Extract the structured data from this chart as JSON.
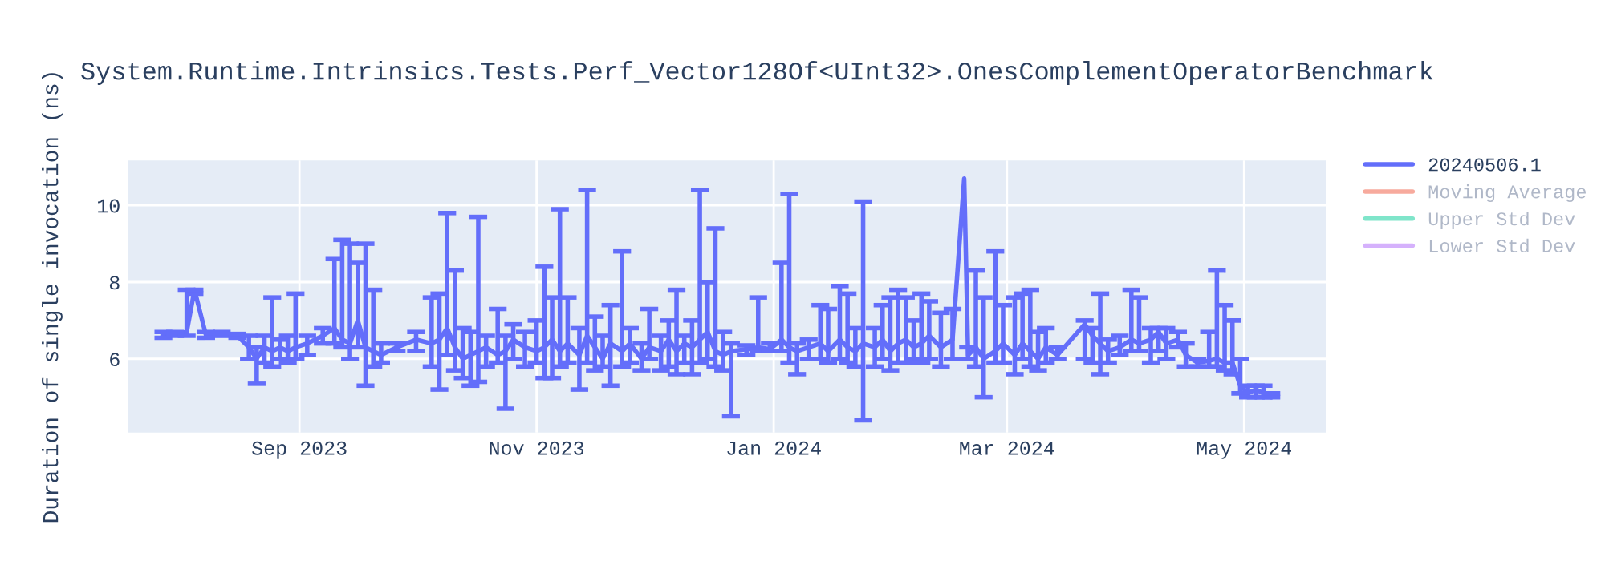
{
  "chart_data": {
    "type": "line",
    "title": "System.Runtime.Intrinsics.Tests.Perf_Vector128Of<UInt32>.OnesComplementOperatorBenchmark",
    "ylabel": "Duration of single invocation (ns)",
    "x": [
      "2023-07-28",
      "2023-07-31",
      "2023-08-03",
      "2023-08-05",
      "2023-08-08",
      "2023-08-12",
      "2023-08-16",
      "2023-08-19",
      "2023-08-21",
      "2023-08-23",
      "2023-08-25",
      "2023-08-27",
      "2023-08-29",
      "2023-08-31",
      "2023-09-03",
      "2023-09-07",
      "2023-09-10",
      "2023-09-12",
      "2023-09-14",
      "2023-09-16",
      "2023-09-18",
      "2023-09-20",
      "2023-09-22",
      "2023-09-26",
      "2023-10-01",
      "2023-10-05",
      "2023-10-07",
      "2023-10-09",
      "2023-10-11",
      "2023-10-13",
      "2023-10-15",
      "2023-10-17",
      "2023-10-19",
      "2023-10-22",
      "2023-10-24",
      "2023-10-26",
      "2023-10-29",
      "2023-11-01",
      "2023-11-03",
      "2023-11-05",
      "2023-11-07",
      "2023-11-09",
      "2023-11-12",
      "2023-11-14",
      "2023-11-16",
      "2023-11-18",
      "2023-11-20",
      "2023-11-23",
      "2023-11-25",
      "2023-11-28",
      "2023-11-30",
      "2023-12-03",
      "2023-12-05",
      "2023-12-07",
      "2023-12-09",
      "2023-12-11",
      "2023-12-13",
      "2023-12-15",
      "2023-12-17",
      "2023-12-19",
      "2023-12-21",
      "2023-12-25",
      "2023-12-28",
      "2023-12-31",
      "2024-01-03",
      "2024-01-05",
      "2024-01-07",
      "2024-01-10",
      "2024-01-13",
      "2024-01-15",
      "2024-01-18",
      "2024-01-20",
      "2024-01-22",
      "2024-01-24",
      "2024-01-27",
      "2024-01-29",
      "2024-01-31",
      "2024-02-02",
      "2024-02-04",
      "2024-02-06",
      "2024-02-08",
      "2024-02-10",
      "2024-02-13",
      "2024-02-16",
      "2024-02-19",
      "2024-02-20",
      "2024-02-22",
      "2024-02-24",
      "2024-02-27",
      "2024-02-29",
      "2024-03-03",
      "2024-03-05",
      "2024-03-07",
      "2024-03-09",
      "2024-03-11",
      "2024-03-14",
      "2024-03-21",
      "2024-03-23",
      "2024-03-25",
      "2024-03-27",
      "2024-03-30",
      "2024-04-02",
      "2024-04-04",
      "2024-04-07",
      "2024-04-09",
      "2024-04-11",
      "2024-04-14",
      "2024-04-16",
      "2024-04-19",
      "2024-04-22",
      "2024-04-24",
      "2024-04-26",
      "2024-04-28",
      "2024-04-30",
      "2024-05-02",
      "2024-05-04",
      "2024-05-06",
      "2024-05-08"
    ],
    "series": [
      {
        "name": "20240506.1",
        "color": "#636efa",
        "values": [
          6.6,
          6.65,
          6.7,
          7.8,
          6.6,
          6.65,
          6.6,
          6.3,
          6.0,
          6.3,
          6.2,
          6.3,
          6.2,
          6.3,
          6.4,
          6.6,
          6.8,
          6.5,
          6.4,
          7.0,
          6.3,
          6.2,
          6.1,
          6.3,
          6.5,
          6.4,
          6.5,
          6.8,
          6.3,
          6.0,
          6.1,
          6.2,
          6.3,
          6.1,
          6.2,
          6.5,
          6.3,
          6.2,
          6.3,
          6.5,
          6.2,
          6.4,
          6.1,
          6.6,
          6.3,
          6.0,
          6.4,
          6.2,
          6.4,
          6.0,
          6.3,
          6.2,
          6.5,
          6.2,
          6.4,
          6.3,
          6.5,
          6.7,
          6.2,
          6.1,
          6.2,
          6.25,
          6.3,
          6.25,
          6.5,
          6.3,
          6.2,
          6.3,
          6.4,
          6.2,
          6.5,
          6.3,
          6.2,
          6.4,
          6.3,
          6.5,
          6.2,
          6.4,
          6.5,
          6.3,
          6.4,
          6.6,
          6.3,
          6.5,
          10.7,
          6.1,
          6.3,
          6.0,
          6.2,
          6.4,
          6.1,
          6.4,
          6.2,
          6.0,
          6.3,
          6.1,
          6.9,
          6.6,
          6.4,
          6.2,
          6.3,
          6.5,
          6.4,
          6.5,
          6.7,
          6.4,
          6.5,
          6.1,
          5.9,
          5.95,
          6.0,
          5.9,
          5.9,
          5.3,
          5.1,
          5.2,
          5.1,
          5.0
        ],
        "errors": [
          [
            6.55,
            6.7
          ],
          [
            6.6,
            6.7
          ],
          [
            6.6,
            7.8
          ],
          [
            7.7,
            7.8
          ],
          [
            6.55,
            6.7
          ],
          [
            6.6,
            6.7
          ],
          [
            6.55,
            6.65
          ],
          [
            6.0,
            6.6
          ],
          [
            5.35,
            6.3
          ],
          [
            5.9,
            6.6
          ],
          [
            5.8,
            7.6
          ],
          [
            6.0,
            6.5
          ],
          [
            5.9,
            6.6
          ],
          [
            6.0,
            7.7
          ],
          [
            6.1,
            6.6
          ],
          [
            6.4,
            6.8
          ],
          [
            6.4,
            8.6
          ],
          [
            6.3,
            9.1
          ],
          [
            6.0,
            9.0
          ],
          [
            6.3,
            8.5
          ],
          [
            5.3,
            9.0
          ],
          [
            5.8,
            7.8
          ],
          [
            5.9,
            6.4
          ],
          [
            6.2,
            6.4
          ],
          [
            6.2,
            6.7
          ],
          [
            5.8,
            7.6
          ],
          [
            5.2,
            7.7
          ],
          [
            6.1,
            9.8
          ],
          [
            5.7,
            8.3
          ],
          [
            5.5,
            6.8
          ],
          [
            5.3,
            6.7
          ],
          [
            5.4,
            9.7
          ],
          [
            5.8,
            6.6
          ],
          [
            5.9,
            7.3
          ],
          [
            4.7,
            6.6
          ],
          [
            6.0,
            6.9
          ],
          [
            5.8,
            6.7
          ],
          [
            5.9,
            7.0
          ],
          [
            5.5,
            8.4
          ],
          [
            5.5,
            7.6
          ],
          [
            5.8,
            9.9
          ],
          [
            5.9,
            7.6
          ],
          [
            5.2,
            6.8
          ],
          [
            5.9,
            10.4
          ],
          [
            5.7,
            7.1
          ],
          [
            5.8,
            6.6
          ],
          [
            5.3,
            7.4
          ],
          [
            5.8,
            8.8
          ],
          [
            5.9,
            6.8
          ],
          [
            5.7,
            6.4
          ],
          [
            6.0,
            7.3
          ],
          [
            5.7,
            6.6
          ],
          [
            5.8,
            7.0
          ],
          [
            5.6,
            7.8
          ],
          [
            5.9,
            6.6
          ],
          [
            5.6,
            7.0
          ],
          [
            5.9,
            10.4
          ],
          [
            6.0,
            8.0
          ],
          [
            5.8,
            9.4
          ],
          [
            5.7,
            6.7
          ],
          [
            4.5,
            6.4
          ],
          [
            6.1,
            6.35
          ],
          [
            6.2,
            7.6
          ],
          [
            6.2,
            6.4
          ],
          [
            6.2,
            8.5
          ],
          [
            5.9,
            10.3
          ],
          [
            5.6,
            6.4
          ],
          [
            6.0,
            6.5
          ],
          [
            6.0,
            7.4
          ],
          [
            5.9,
            7.3
          ],
          [
            6.0,
            7.9
          ],
          [
            5.9,
            7.7
          ],
          [
            5.8,
            6.8
          ],
          [
            4.4,
            10.1
          ],
          [
            5.8,
            6.8
          ],
          [
            6.0,
            7.4
          ],
          [
            5.7,
            7.6
          ],
          [
            5.9,
            7.8
          ],
          [
            5.9,
            7.6
          ],
          [
            6.0,
            7.0
          ],
          [
            5.9,
            7.7
          ],
          [
            6.0,
            7.5
          ],
          [
            5.8,
            7.2
          ],
          [
            6.0,
            7.3
          ],
          null,
          [
            6.0,
            6.3
          ],
          [
            5.8,
            8.3
          ],
          [
            5.0,
            7.6
          ],
          [
            5.9,
            8.8
          ],
          [
            5.9,
            7.4
          ],
          [
            5.6,
            7.6
          ],
          [
            6.0,
            7.7
          ],
          [
            5.8,
            7.8
          ],
          [
            5.7,
            6.7
          ],
          [
            5.9,
            6.8
          ],
          [
            6.0,
            6.3
          ],
          [
            6.0,
            7.0
          ],
          [
            5.9,
            6.8
          ],
          [
            5.6,
            7.7
          ],
          [
            5.9,
            6.5
          ],
          [
            6.1,
            6.6
          ],
          [
            6.2,
            7.8
          ],
          [
            6.2,
            7.6
          ],
          [
            5.9,
            6.8
          ],
          [
            6.2,
            6.8
          ],
          [
            6.0,
            6.8
          ],
          [
            6.3,
            6.7
          ],
          [
            5.8,
            6.4
          ],
          [
            5.8,
            6.0
          ],
          [
            5.8,
            6.7
          ],
          [
            5.8,
            8.3
          ],
          [
            5.7,
            7.4
          ],
          [
            5.6,
            7.0
          ],
          [
            5.1,
            6.0
          ],
          [
            5.0,
            5.3
          ],
          [
            5.0,
            5.3
          ],
          [
            5.0,
            5.3
          ],
          [
            5.0,
            5.1
          ]
        ]
      },
      {
        "name": "Moving Average",
        "color": "#ef553b",
        "values": [
          null,
          null,
          null,
          null,
          null,
          null,
          null,
          null,
          null,
          null,
          null,
          null,
          null,
          null,
          null,
          null,
          null,
          null,
          null,
          null,
          null,
          null,
          null,
          null,
          null,
          null,
          null,
          null,
          null,
          null,
          null,
          null,
          null,
          null,
          null,
          null,
          null,
          null,
          null,
          null,
          null,
          null,
          null,
          null,
          null,
          null,
          null,
          null,
          null,
          null,
          null,
          null,
          null,
          null,
          null,
          null,
          null,
          null,
          null,
          null,
          null,
          null,
          null,
          null,
          null,
          null,
          null,
          null,
          null,
          null,
          null,
          null,
          null,
          null,
          null,
          null,
          null,
          null,
          null,
          null,
          null,
          null,
          null,
          null,
          null,
          null,
          null,
          null,
          null,
          null,
          null,
          null,
          null,
          null,
          null,
          null,
          null,
          null,
          null,
          null,
          null,
          null,
          null,
          null,
          null,
          null,
          null,
          null,
          null,
          null,
          null,
          null,
          null,
          null,
          null,
          null,
          null,
          null
        ]
      },
      {
        "name": "Upper Std Dev",
        "color": "#00cc96",
        "values": [
          null,
          null,
          null,
          null,
          null,
          null,
          null,
          null,
          null,
          null,
          null,
          null,
          null,
          null,
          null,
          null,
          null,
          null,
          null,
          null,
          null,
          null,
          null,
          null,
          null,
          null,
          null,
          null,
          null,
          null,
          null,
          null,
          null,
          null,
          null,
          null,
          null,
          null,
          null,
          null,
          null,
          null,
          null,
          null,
          null,
          null,
          null,
          null,
          null,
          null,
          null,
          null,
          null,
          null,
          null,
          null,
          null,
          null,
          null,
          null,
          null,
          null,
          null,
          null,
          null,
          null,
          null,
          null,
          null,
          null,
          null,
          null,
          null,
          null,
          null,
          null,
          null,
          null,
          null,
          null,
          null,
          null,
          null,
          null,
          null,
          null,
          null,
          null,
          null,
          null,
          null,
          null,
          null,
          null,
          null,
          null,
          null,
          null,
          null,
          null,
          null,
          null,
          null,
          null,
          null,
          null,
          null,
          null,
          null,
          null,
          null,
          null,
          null,
          null,
          null,
          null,
          null,
          null
        ]
      },
      {
        "name": "Lower Std Dev",
        "color": "#ab63fa",
        "values": [
          null,
          null,
          null,
          null,
          null,
          null,
          null,
          null,
          null,
          null,
          null,
          null,
          null,
          null,
          null,
          null,
          null,
          null,
          null,
          null,
          null,
          null,
          null,
          null,
          null,
          null,
          null,
          null,
          null,
          null,
          null,
          null,
          null,
          null,
          null,
          null,
          null,
          null,
          null,
          null,
          null,
          null,
          null,
          null,
          null,
          null,
          null,
          null,
          null,
          null,
          null,
          null,
          null,
          null,
          null,
          null,
          null,
          null,
          null,
          null,
          null,
          null,
          null,
          null,
          null,
          null,
          null,
          null,
          null,
          null,
          null,
          null,
          null,
          null,
          null,
          null,
          null,
          null,
          null,
          null,
          null,
          null,
          null,
          null,
          null,
          null,
          null,
          null,
          null,
          null,
          null,
          null,
          null,
          null,
          null,
          null,
          null,
          null,
          null,
          null,
          null,
          null,
          null,
          null,
          null,
          null,
          null,
          null,
          null,
          null,
          null,
          null,
          null,
          null,
          null,
          null,
          null,
          null
        ]
      }
    ],
    "xlim": [
      "2023-07-19",
      "2024-05-22"
    ],
    "xticks": [
      {
        "value": "2023-09-01",
        "label": "Sep 2023"
      },
      {
        "value": "2023-11-01",
        "label": "Nov 2023"
      },
      {
        "value": "2024-01-01",
        "label": "Jan 2024"
      },
      {
        "value": "2024-03-01",
        "label": "Mar 2024"
      },
      {
        "value": "2024-05-01",
        "label": "May 2024"
      }
    ],
    "ylim": [
      4.08,
      11.17
    ],
    "yticks": [
      6,
      8,
      10
    ],
    "grid": true,
    "legend": "top right",
    "marker": "none",
    "line_style": "solid"
  }
}
